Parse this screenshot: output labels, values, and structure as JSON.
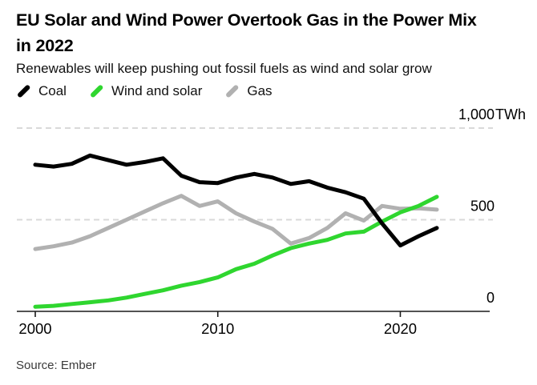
{
  "header": {
    "title_line1": "EU Solar and Wind Power Overtook Gas in the Power Mix",
    "title_line2": "in 2022",
    "subtitle": "Renewables will keep pushing out fossil fuels as wind and solar grow"
  },
  "legend": [
    {
      "label": "Coal",
      "color": "#000000"
    },
    {
      "label": "Wind and solar",
      "color": "#2fd62f"
    },
    {
      "label": "Gas",
      "color": "#b1b1b1"
    }
  ],
  "source": "Source: Ember",
  "colors": {
    "background": "#ffffff",
    "grid": "#d9d9d9",
    "axis": "#1a1a1a",
    "text": "#000000"
  },
  "chart_data": {
    "type": "line",
    "title": "EU Solar and Wind Power Overtook Gas in the Power Mix in 2022",
    "subtitle": "Renewables will keep pushing out fossil fuels as wind and solar grow",
    "unit": "TWh",
    "x": [
      2000,
      2001,
      2002,
      2003,
      2004,
      2005,
      2006,
      2007,
      2008,
      2009,
      2010,
      2011,
      2012,
      2013,
      2014,
      2015,
      2016,
      2017,
      2018,
      2019,
      2020,
      2021,
      2022
    ],
    "series": [
      {
        "name": "Gas",
        "color": "#b1b1b1",
        "values": [
          340,
          355,
          375,
          410,
          455,
          500,
          545,
          590,
          630,
          575,
          600,
          535,
          490,
          450,
          370,
          400,
          455,
          535,
          495,
          575,
          560,
          562,
          555
        ]
      },
      {
        "name": "Wind and solar",
        "color": "#2fd62f",
        "values": [
          25,
          30,
          40,
          50,
          60,
          75,
          95,
          115,
          140,
          160,
          185,
          230,
          260,
          305,
          345,
          370,
          390,
          425,
          435,
          490,
          540,
          575,
          625
        ]
      },
      {
        "name": "Coal",
        "color": "#000000",
        "values": [
          800,
          790,
          805,
          850,
          825,
          800,
          815,
          835,
          740,
          705,
          700,
          730,
          750,
          730,
          695,
          710,
          675,
          650,
          615,
          480,
          360,
          410,
          455
        ]
      }
    ],
    "y_axis": {
      "range": [
        0,
        1130
      ],
      "ticks": [
        {
          "value": 1000,
          "label": "1,000",
          "unit": "TWh"
        },
        {
          "value": 500,
          "label": "500",
          "unit": ""
        },
        {
          "value": 0,
          "label": "0",
          "unit": ""
        }
      ]
    },
    "x_axis": {
      "range": [
        2000,
        2022
      ],
      "ticks": [
        {
          "value": 2000,
          "label": "2000"
        },
        {
          "value": 2010,
          "label": "2010"
        },
        {
          "value": 2020,
          "label": "2020"
        }
      ]
    },
    "grid": "horizontal-dashed",
    "legend_position": "top-left"
  }
}
